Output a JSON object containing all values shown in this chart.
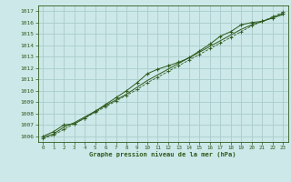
{
  "title": "Graphe pression niveau de la mer (hPa)",
  "bg_color": "#cce8e8",
  "grid_color": "#aacccc",
  "line_color": "#2d5a1b",
  "marker_color": "#2d5a1b",
  "xlim": [
    -0.5,
    23.5
  ],
  "ylim": [
    1005.5,
    1017.5
  ],
  "xticks": [
    0,
    1,
    2,
    3,
    4,
    5,
    6,
    7,
    8,
    9,
    10,
    11,
    12,
    13,
    14,
    15,
    16,
    17,
    18,
    19,
    20,
    21,
    22,
    23
  ],
  "yticks": [
    1006,
    1007,
    1008,
    1009,
    1010,
    1011,
    1012,
    1013,
    1014,
    1015,
    1016,
    1017
  ],
  "series1_x": [
    0,
    1,
    2,
    3,
    4,
    5,
    6,
    7,
    8,
    9,
    10,
    11,
    12,
    13,
    14,
    15,
    16,
    17,
    18,
    19,
    20,
    21,
    22,
    23
  ],
  "series1_y": [
    1006.0,
    1006.4,
    1007.0,
    1007.1,
    1007.6,
    1008.2,
    1008.8,
    1009.4,
    1010.0,
    1010.7,
    1011.5,
    1011.9,
    1012.2,
    1012.5,
    1012.9,
    1013.5,
    1014.1,
    1014.8,
    1015.2,
    1015.8,
    1016.0,
    1016.1,
    1016.4,
    1016.8
  ],
  "series2_x": [
    0,
    1,
    2,
    3,
    4,
    5,
    6,
    7,
    8,
    9,
    10,
    11,
    12,
    13,
    14,
    15,
    16,
    17,
    18,
    19,
    20,
    21,
    22,
    23
  ],
  "series2_y": [
    1005.9,
    1006.2,
    1006.8,
    1007.2,
    1007.7,
    1008.2,
    1008.7,
    1009.2,
    1009.7,
    1010.3,
    1010.9,
    1011.4,
    1011.9,
    1012.4,
    1012.9,
    1013.4,
    1013.9,
    1014.4,
    1014.9,
    1015.4,
    1015.8,
    1016.1,
    1016.4,
    1016.7
  ],
  "series3_x": [
    0,
    1,
    2,
    3,
    4,
    5,
    6,
    7,
    8,
    9,
    10,
    11,
    12,
    13,
    14,
    15,
    16,
    17,
    18,
    19,
    20,
    21,
    22,
    23
  ],
  "series3_y": [
    1005.8,
    1006.1,
    1006.6,
    1007.1,
    1007.6,
    1008.1,
    1008.6,
    1009.1,
    1009.6,
    1010.1,
    1010.7,
    1011.2,
    1011.7,
    1012.2,
    1012.7,
    1013.2,
    1013.7,
    1014.2,
    1014.7,
    1015.2,
    1015.7,
    1016.1,
    1016.5,
    1016.9
  ]
}
